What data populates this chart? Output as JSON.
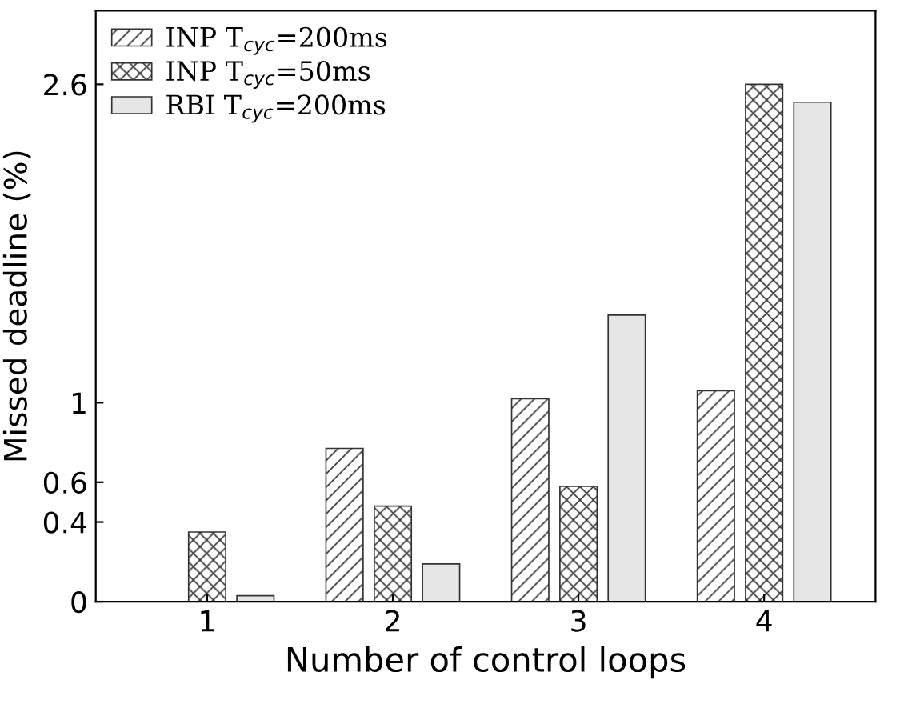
{
  "chart_data": {
    "type": "bar",
    "xlabel": "Number of control loops",
    "ylabel": "Missed deadline (%)",
    "categories": [
      "1",
      "2",
      "3",
      "4"
    ],
    "series": [
      {
        "name": "INP T$_{cyc}$=200ms",
        "color": "#333333",
        "values": [
          0.0,
          0.77,
          1.02,
          1.06
        ]
      },
      {
        "name": "INP T$_{cyc}$=50ms",
        "color": "#333333",
        "values": [
          0.35,
          0.48,
          0.58,
          2.6
        ]
      },
      {
        "name": "RBI T$_{cyc}$=200ms",
        "color": "#e6e6e6",
        "values": [
          0.03,
          0.19,
          1.44,
          2.51
        ]
      }
    ],
    "ylim": [
      0,
      2.97
    ],
    "yticks": [
      0,
      0.4,
      0.6,
      1,
      2.6
    ],
    "grid": false,
    "legend": "top left"
  }
}
